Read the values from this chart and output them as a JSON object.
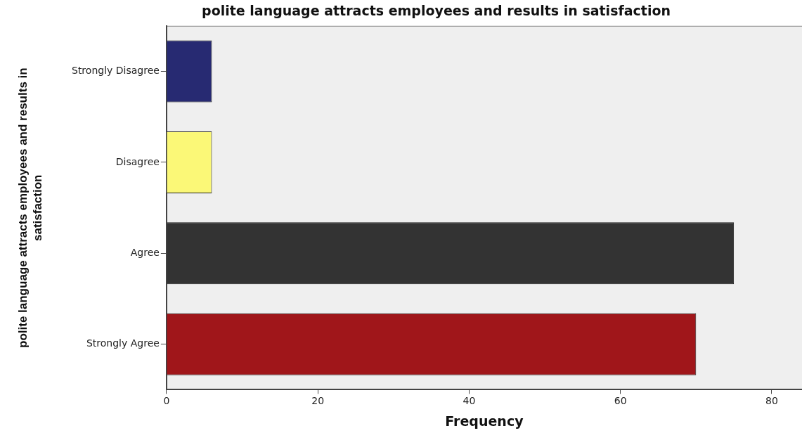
{
  "chart_data": {
    "type": "bar",
    "orientation": "horizontal",
    "title": "polite language attracts employees and results in satisfaction",
    "xlabel": "Frequency",
    "ylabel": "polite language attracts employees and results in satisfaction",
    "categories": [
      "Strongly Disagree",
      "Disagree",
      "Agree",
      "Strongly Agree"
    ],
    "values": [
      6,
      6,
      75,
      70
    ],
    "colors": [
      "#272a72",
      "#fbf877",
      "#333333",
      "#a0161a"
    ],
    "xlim": [
      0,
      84
    ],
    "xticks": [
      0,
      20,
      40,
      60,
      80
    ]
  }
}
